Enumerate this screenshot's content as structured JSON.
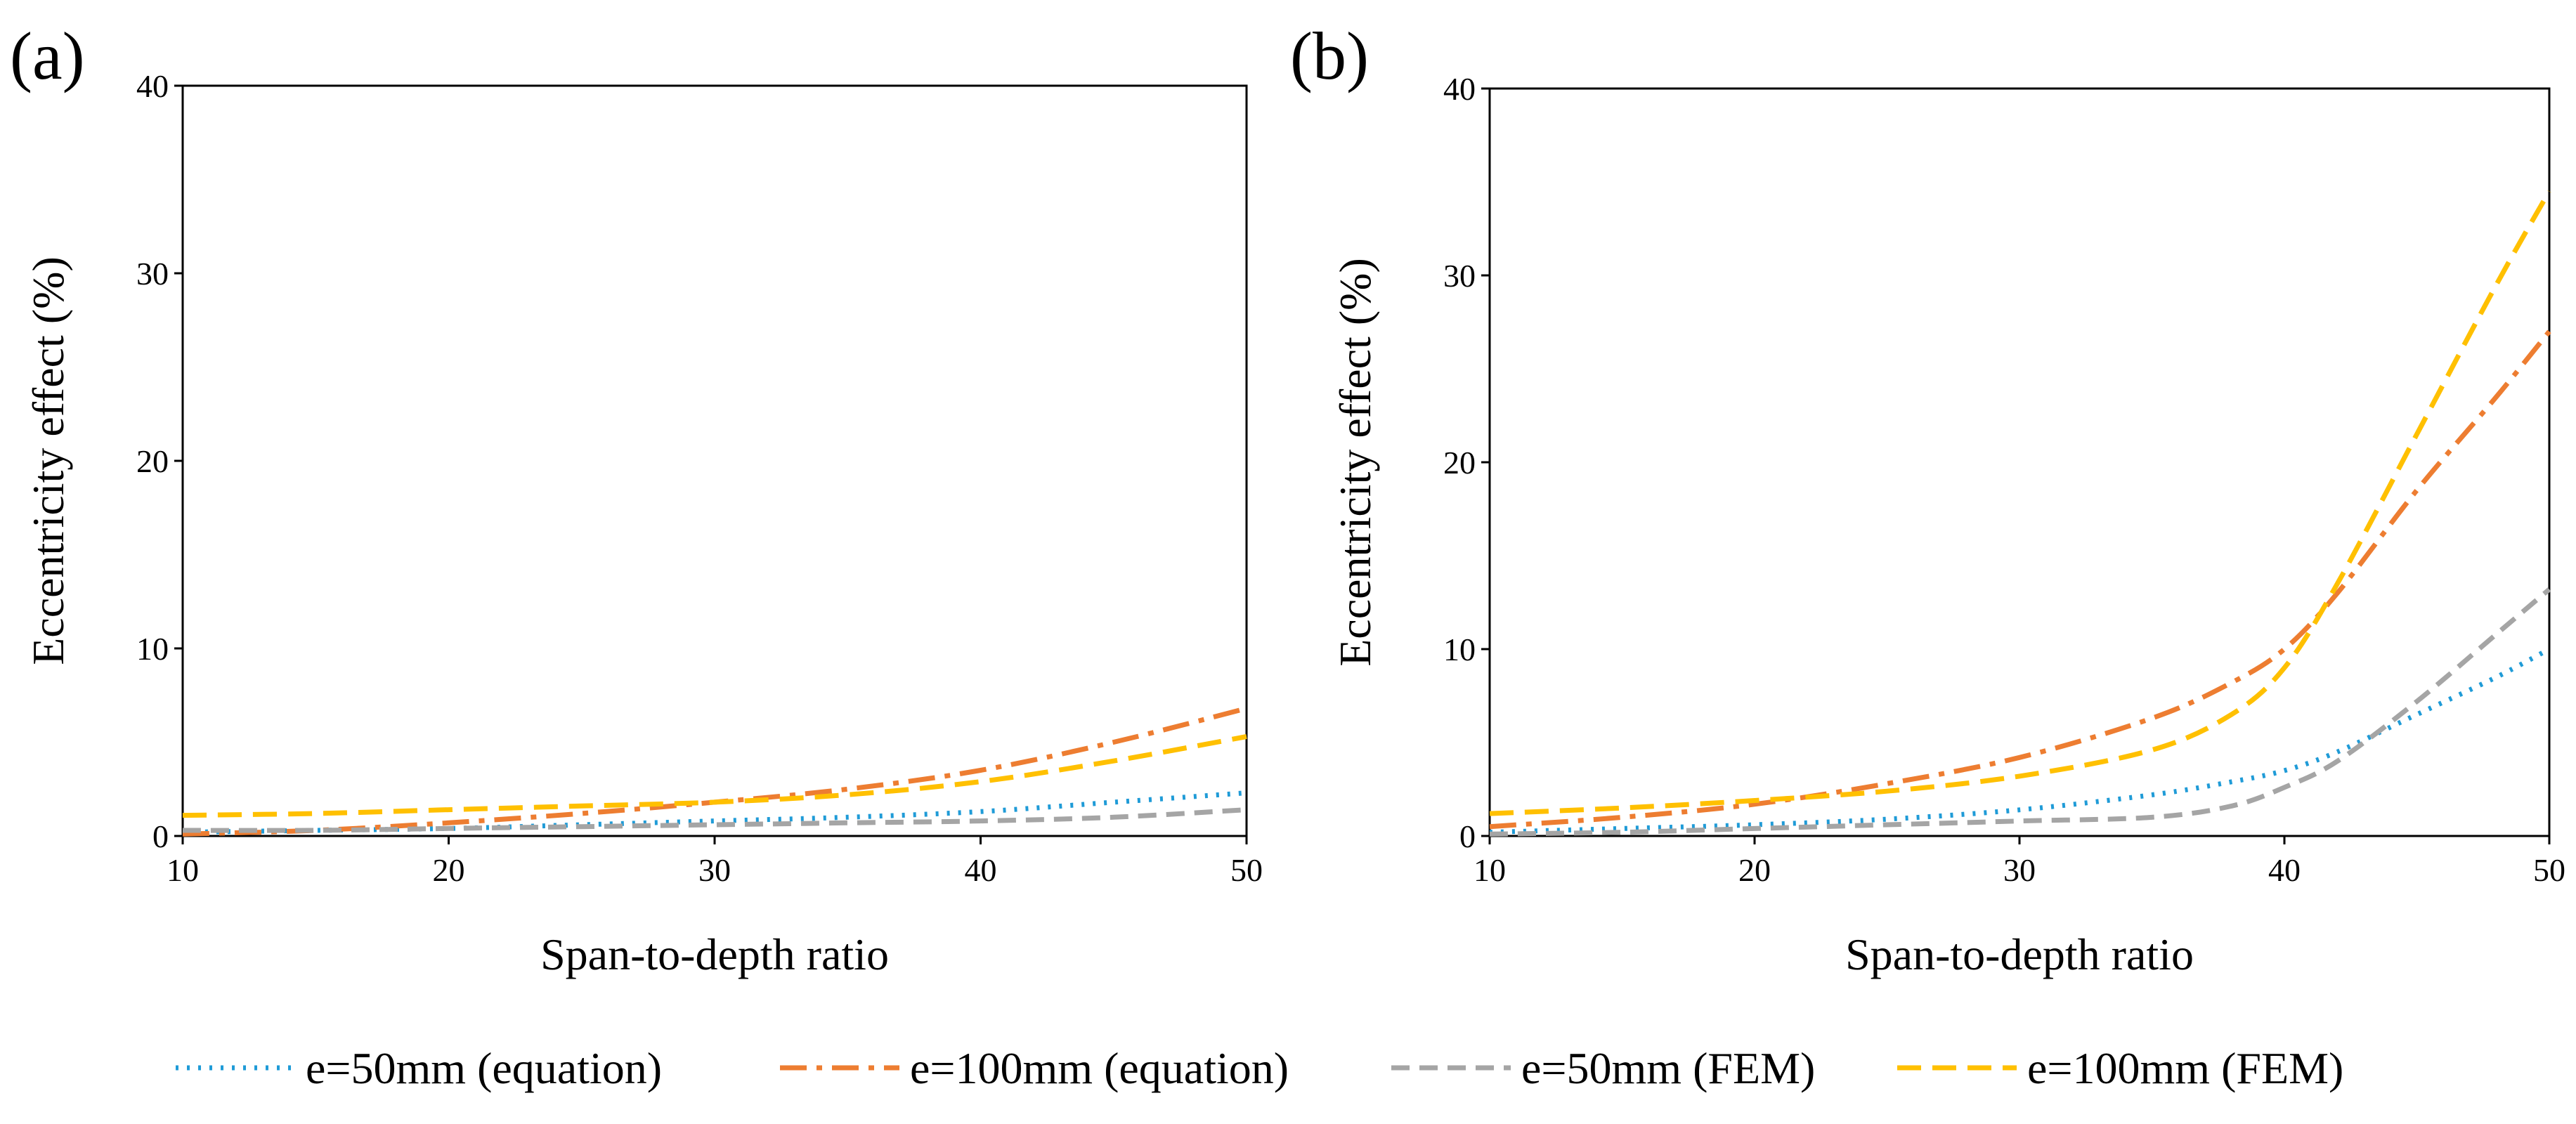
{
  "series_styles": [
    {
      "color": "#1F9BD7",
      "dash": "4 12"
    },
    {
      "color": "#ED7D31",
      "dash": "38 14 8 14"
    },
    {
      "color": "#A5A5A5",
      "dash": "26 14"
    },
    {
      "color": "#FFC000",
      "dash": "34 16"
    }
  ],
  "chart_data": [
    {
      "type": "line",
      "panel_label": "(a)",
      "xlabel": "Span-to-depth ratio",
      "ylabel": "Eccentricity effect (%)",
      "xlim": [
        10,
        50
      ],
      "ylim": [
        0,
        40
      ],
      "xticks": [
        "10",
        "20",
        "30",
        "40",
        "50"
      ],
      "yticks": [
        "0",
        "10",
        "20",
        "30",
        "40"
      ],
      "grid": false,
      "legend": "bottom",
      "x": [
        10,
        15,
        20,
        25,
        30,
        35,
        40,
        45,
        50
      ],
      "series": [
        {
          "name": "e=50mm (equation)",
          "values": [
            0.2,
            0.3,
            0.4,
            0.6,
            0.8,
            1.0,
            1.3,
            1.8,
            2.3
          ]
        },
        {
          "name": "e=100mm (equation)",
          "values": [
            0.1,
            0.3,
            0.7,
            1.2,
            1.8,
            2.5,
            3.5,
            5.0,
            6.8
          ]
        },
        {
          "name": "e=50mm (FEM)",
          "values": [
            0.3,
            0.3,
            0.4,
            0.5,
            0.6,
            0.7,
            0.8,
            1.0,
            1.4
          ]
        },
        {
          "name": "e=100mm (FEM)",
          "values": [
            1.1,
            1.2,
            1.4,
            1.6,
            1.8,
            2.2,
            2.9,
            4.0,
            5.3
          ]
        }
      ]
    },
    {
      "type": "line",
      "panel_label": "(b)",
      "xlabel": "Span-to-depth ratio",
      "ylabel": "Eccentricity effect (%)",
      "xlim": [
        10,
        50
      ],
      "ylim": [
        0,
        40
      ],
      "xticks": [
        "10",
        "20",
        "30",
        "40",
        "50"
      ],
      "yticks": [
        "0",
        "10",
        "20",
        "30",
        "40"
      ],
      "grid": false,
      "legend": "bottom",
      "x": [
        10,
        15,
        20,
        25,
        30,
        35,
        38,
        40,
        42,
        45,
        48,
        50
      ],
      "series": [
        {
          "name": "e=50mm (equation)",
          "values": [
            0.2,
            0.4,
            0.6,
            0.9,
            1.4,
            2.2,
            2.9,
            3.5,
            4.5,
            6.5,
            8.5,
            10.0
          ]
        },
        {
          "name": "e=100mm (equation)",
          "values": [
            0.5,
            1.0,
            1.7,
            2.8,
            4.2,
            6.3,
            8.2,
            10.0,
            13.0,
            18.5,
            23.5,
            27.0
          ]
        },
        {
          "name": "e=50mm (FEM)",
          "values": [
            0.1,
            0.2,
            0.4,
            0.6,
            0.8,
            1.0,
            1.6,
            2.6,
            4.0,
            7.2,
            10.8,
            13.2
          ]
        },
        {
          "name": "e=100mm (FEM)",
          "values": [
            1.2,
            1.5,
            1.9,
            2.4,
            3.2,
            4.6,
            6.5,
            9.0,
            13.5,
            21.5,
            29.5,
            34.5
          ]
        }
      ]
    }
  ]
}
